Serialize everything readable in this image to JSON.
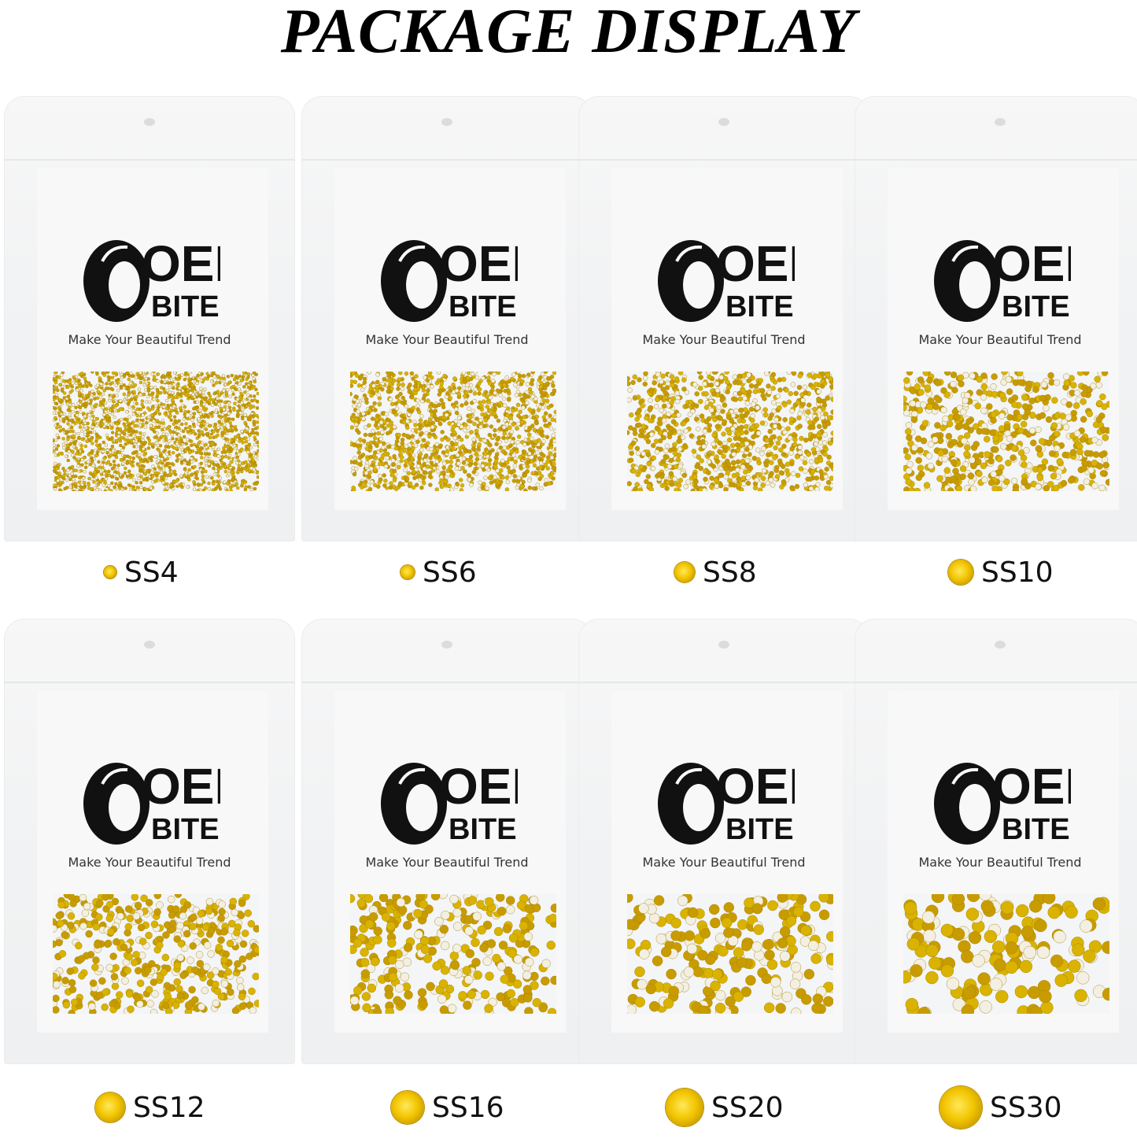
{
  "title": "PACKAGE DISPLAY",
  "brand": {
    "logo_text_top": "OEI",
    "logo_text_bottom": "BITE",
    "tagline": "Make Your Beautiful Trend"
  },
  "colors": {
    "gem": "#f2c500",
    "background": "#ffffff"
  },
  "packages": [
    {
      "size": "SS4"
    },
    {
      "size": "SS6"
    },
    {
      "size": "SS8"
    },
    {
      "size": "SS10"
    },
    {
      "size": "SS12"
    },
    {
      "size": "SS16"
    },
    {
      "size": "SS20"
    },
    {
      "size": "SS30"
    }
  ]
}
